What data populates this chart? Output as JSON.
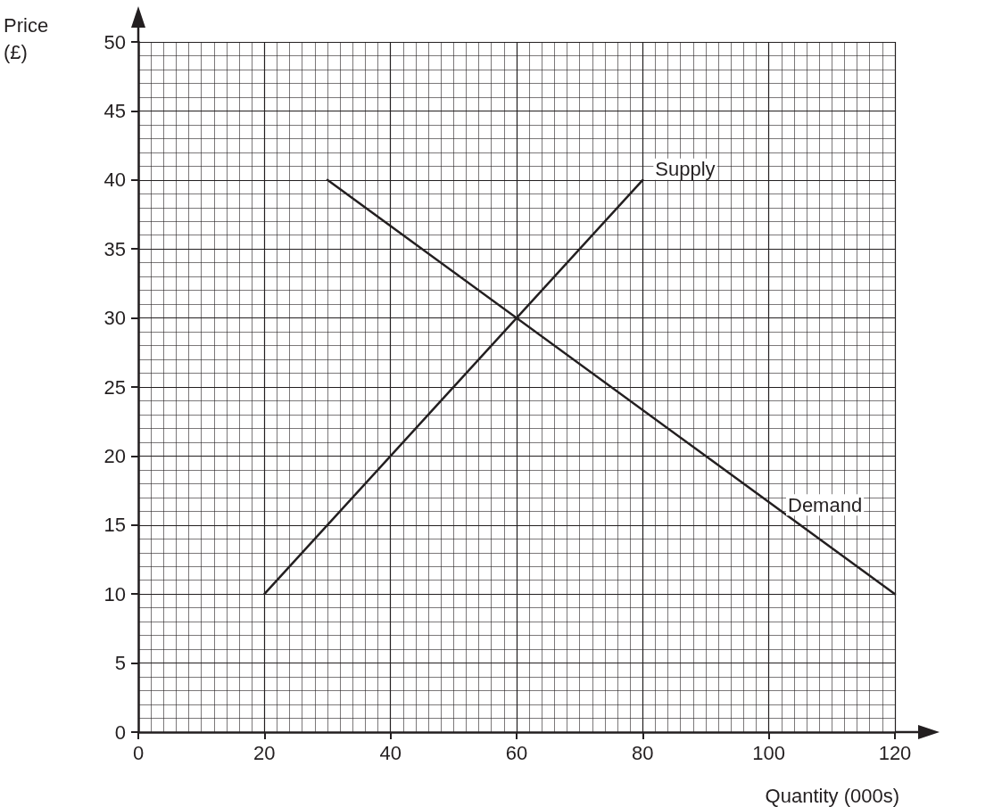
{
  "chart_data": {
    "type": "line",
    "xlabel": "Quantity (000s)",
    "ylabel": "Price (£)",
    "xlim": [
      0,
      120
    ],
    "xticks": [
      0,
      20,
      40,
      60,
      80,
      100,
      120
    ],
    "ylim": [
      0,
      50
    ],
    "yticks": [
      0,
      5,
      10,
      15,
      20,
      25,
      30,
      35,
      40,
      45,
      50
    ],
    "grid": true,
    "legend": false,
    "marker": "none",
    "line_style": "solid",
    "series": [
      {
        "name": "Supply",
        "color": "#231f20",
        "x": [
          20,
          80
        ],
        "values": [
          10,
          40
        ]
      },
      {
        "name": "Demand",
        "color": "#231f20",
        "x": [
          30,
          120
        ],
        "values": [
          40,
          10
        ]
      }
    ]
  }
}
